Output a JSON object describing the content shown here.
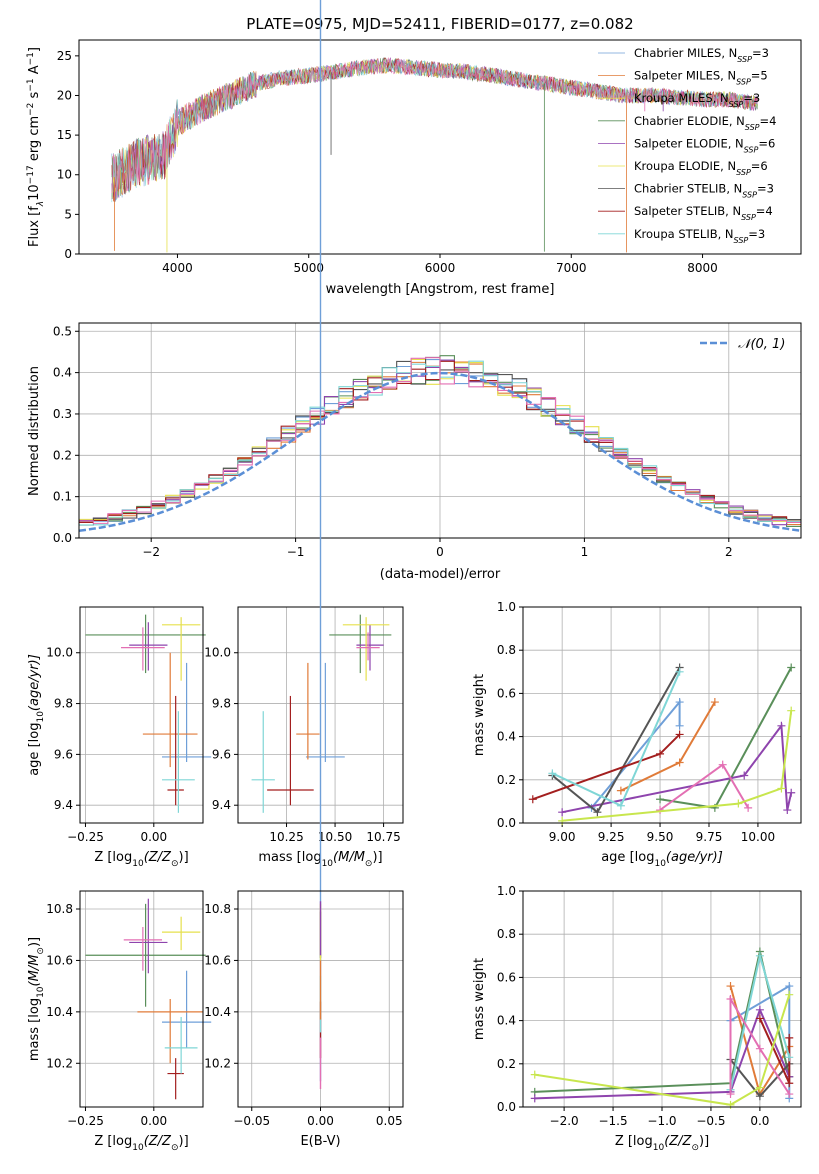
{
  "colors": {
    "cm": "#1f77b4",
    "sm": "#ff7f0e",
    "km": "#2ca02c",
    "cM": "#6b8dd6",
    "sM": "#d97a2b",
    "kM": "#e8c24a",
    "s1": "#6f9fd8",
    "s2": "#e07b39",
    "s3": "#5a8f5a",
    "s4": "#8e44ad",
    "s5": "#e6e04d",
    "s6": "#555555",
    "s7": "#a31f1f",
    "s8": "#7fd6d6",
    "s9": "#e36fb3",
    "s10": "#c8e64d",
    "normal": "#5b8fd6",
    "grid": "#b0b0b0"
  },
  "chart_data": [
    {
      "type": "line",
      "title": "PLATE=0975, MJD=52411, FIBERID=0177, z=0.082",
      "xlabel": "wavelength [Angstrom, rest frame]",
      "ylabel": "Flux [f",
      "ylabel_sub": "λ",
      "ylabel_rest": "10",
      "ylabel_exp": "−17",
      "ylabel_units": " erg cm",
      "ylabel_exp2": "−2",
      "ylabel_s": " s",
      "ylabel_exp3": "−1",
      "ylabel_A": " A",
      "ylabel_exp4": "−1",
      "ylabel_end": "]",
      "xlim": [
        3250,
        8750
      ],
      "ylim": [
        0,
        27
      ],
      "xticks": [
        "4000",
        "5000",
        "6000",
        "7000",
        "8000"
      ],
      "xtick_values": [
        4000,
        5000,
        6000,
        7000,
        8000
      ],
      "yticks": [
        "0",
        "5",
        "10",
        "15",
        "20",
        "25"
      ],
      "ytick_values": [
        0,
        5,
        10,
        15,
        20,
        25
      ],
      "continuum_x": [
        3500,
        3700,
        3900,
        4000,
        4200,
        4400,
        4600,
        4800,
        5000,
        5200,
        5400,
        5600,
        5800,
        6000,
        6200,
        6400,
        6600,
        6800,
        7000,
        7200,
        7400,
        7600,
        7800,
        8000,
        8200,
        8400
      ],
      "continuum_y": [
        9.5,
        11.5,
        12.5,
        16.5,
        18.5,
        20,
        21.5,
        22.2,
        22.5,
        23,
        23.5,
        23.8,
        23.5,
        23.2,
        23,
        22.5,
        22,
        21.5,
        21,
        20.5,
        20,
        20,
        19.8,
        19.5,
        19.5,
        19
      ],
      "legend": [
        {
          "name": "Chabrier MILES, N",
          "sub": "SSP",
          "val": "=3"
        },
        {
          "name": "Salpeter MILES, N",
          "sub": "SSP",
          "val": "=5"
        },
        {
          "name": "Kroupa MILES, N",
          "sub": "SSP",
          "val": "=3"
        },
        {
          "name": "Chabrier ELODIE, N",
          "sub": "SSP",
          "val": "=4"
        },
        {
          "name": "Salpeter ELODIE, N",
          "sub": "SSP",
          "val": "=6"
        },
        {
          "name": "Kroupa ELODIE, N",
          "sub": "SSP",
          "val": "=6"
        },
        {
          "name": "Chabrier STELIB, N",
          "sub": "SSP",
          "val": "=3"
        },
        {
          "name": "Salpeter STELIB, N",
          "sub": "SSP",
          "val": "=4"
        },
        {
          "name": "Kroupa STELIB, N",
          "sub": "SSP",
          "val": "=3"
        }
      ],
      "legend_placement": "upper-right"
    },
    {
      "type": "step",
      "xlabel": "(data-model)/error",
      "ylabel": "Normed distribution",
      "xlim": [
        -2.5,
        2.5
      ],
      "ylim": [
        0,
        0.52
      ],
      "xticks": [
        "−2",
        "−1",
        "0",
        "1",
        "2"
      ],
      "xtick_values": [
        -2,
        -1,
        0,
        1,
        2
      ],
      "yticks": [
        "0.0",
        "0.1",
        "0.2",
        "0.3",
        "0.4",
        "0.5"
      ],
      "ytick_values": [
        0,
        0.1,
        0.2,
        0.3,
        0.4,
        0.5
      ],
      "grid": true,
      "legend": "𝒩(0, 1)",
      "normal_mean": 0,
      "normal_sigma": 1,
      "bin_width": 0.1
    },
    {
      "type": "errorbar",
      "xlabel": "Z [log",
      "xlabel_sub": "10",
      "xlabel_rest": "(Z/Z",
      "xlabel_sub2": "⊙",
      "xlabel_end": ")]",
      "ylabel": "age  [log",
      "ylabel_sub": "10",
      "ylabel_rest": "(age/yr)]",
      "xlim": [
        -0.27,
        0.18
      ],
      "ylim": [
        9.33,
        10.18
      ],
      "xticks": [
        "−0.25",
        "0.00"
      ],
      "xtick_values": [
        -0.25,
        0.0
      ],
      "yticks": [
        "9.4",
        "9.6",
        "9.8",
        "10.0"
      ],
      "ytick_values": [
        9.4,
        9.6,
        9.8,
        10.0
      ]
    },
    {
      "type": "errorbar",
      "xlabel": "mass [log",
      "xlabel_sub": "10",
      "xlabel_rest": "(M/M",
      "xlabel_sub2": "⊙",
      "xlabel_end": ")]",
      "xlim": [
        10.0,
        10.85
      ],
      "ylim": [
        9.33,
        10.18
      ],
      "xticks": [
        "10.25",
        "10.50",
        "10.75"
      ],
      "xtick_values": [
        10.25,
        10.5,
        10.75
      ],
      "yticks": [
        "9.4",
        "9.6",
        "9.8",
        "10.0"
      ],
      "ytick_values": [
        9.4,
        9.6,
        9.8,
        10.0
      ]
    },
    {
      "type": "line",
      "xlabel": "age  [log",
      "xlabel_sub": "10",
      "xlabel_rest": "(age/yr)]",
      "ylabel": "mass weight",
      "xlim": [
        8.8,
        10.22
      ],
      "ylim": [
        0,
        1.0
      ],
      "xticks": [
        "9.00",
        "9.25",
        "9.50",
        "9.75",
        "10.00"
      ],
      "xtick_values": [
        9.0,
        9.25,
        9.5,
        9.75,
        10.0
      ],
      "yticks": [
        "0.0",
        "0.2",
        "0.4",
        "0.6",
        "0.8",
        "1.0"
      ],
      "ytick_values": [
        0,
        0.2,
        0.4,
        0.6,
        0.8,
        1.0
      ],
      "grid": true,
      "series": [
        {
          "color": "s1",
          "x": [
            9.15,
            9.6,
            9.6
          ],
          "y": [
            0.07,
            0.56,
            0.45
          ]
        },
        {
          "color": "s2",
          "x": [
            9.3,
            9.6,
            9.78
          ],
          "y": [
            0.15,
            0.28,
            0.56
          ]
        },
        {
          "color": "s3",
          "x": [
            9.5,
            9.78,
            10.17
          ],
          "y": [
            0.11,
            0.07,
            0.72
          ]
        },
        {
          "color": "s4",
          "x": [
            9.0,
            9.93,
            10.12,
            10.15,
            10.17
          ],
          "y": [
            0.05,
            0.22,
            0.45,
            0.06,
            0.14
          ]
        },
        {
          "color": "s6",
          "x": [
            8.95,
            9.18,
            9.6
          ],
          "y": [
            0.22,
            0.05,
            0.72
          ]
        },
        {
          "color": "s7",
          "x": [
            8.85,
            9.5,
            9.6
          ],
          "y": [
            0.11,
            0.32,
            0.41
          ]
        },
        {
          "color": "s8",
          "x": [
            8.95,
            9.3,
            9.6
          ],
          "y": [
            0.23,
            0.08,
            0.7
          ]
        },
        {
          "color": "s9",
          "x": [
            9.5,
            9.82,
            9.95
          ],
          "y": [
            0.06,
            0.27,
            0.07
          ]
        },
        {
          "color": "s10",
          "x": [
            9.0,
            9.9,
            10.12,
            10.17
          ],
          "y": [
            0.01,
            0.09,
            0.16,
            0.52
          ]
        }
      ]
    },
    {
      "type": "errorbar",
      "xlabel": "Z [log",
      "xlabel_sub": "10",
      "xlabel_rest": "(Z/Z",
      "xlabel_sub2": "⊙",
      "xlabel_end": ")]",
      "ylabel": "mass [log",
      "ylabel_sub": "10",
      "ylabel_rest": "(M/M",
      "ylabel_sub2": "⊙",
      "ylabel_end": ")]",
      "xlim": [
        -0.27,
        0.18
      ],
      "ylim": [
        10.03,
        10.87
      ],
      "xticks": [
        "−0.25",
        "0.00"
      ],
      "xtick_values": [
        -0.25,
        0.0
      ],
      "yticks": [
        "10.2",
        "10.4",
        "10.6",
        "10.8"
      ],
      "ytick_values": [
        10.2,
        10.4,
        10.6,
        10.8
      ]
    },
    {
      "type": "errorbar",
      "xlabel": "E(B-V)",
      "xlim": [
        -0.06,
        0.06
      ],
      "ylim": [
        10.03,
        10.87
      ],
      "xticks": [
        "−0.05",
        "0.00",
        "0.05"
      ],
      "xtick_values": [
        -0.05,
        0.0,
        0.05
      ],
      "yticks": [
        "10.2",
        "10.4",
        "10.6",
        "10.8"
      ],
      "ytick_values": [
        10.2,
        10.4,
        10.6,
        10.8
      ]
    },
    {
      "type": "line",
      "xlabel": "Z [log",
      "xlabel_sub": "10",
      "xlabel_rest": "(Z/Z",
      "xlabel_sub2": "⊙",
      "xlabel_end": ")]",
      "ylabel": "mass weight",
      "xlim": [
        -2.42,
        0.42
      ],
      "ylim": [
        0,
        1.0
      ],
      "xticks": [
        "−2.0",
        "−1.5",
        "−1.0",
        "−0.5",
        "0.0"
      ],
      "xtick_values": [
        -2.0,
        -1.5,
        -1.0,
        -0.5,
        0.0
      ],
      "yticks": [
        "0.0",
        "0.2",
        "0.4",
        "0.6",
        "0.8",
        "1.0"
      ],
      "ytick_values": [
        0,
        0.2,
        0.4,
        0.6,
        0.8,
        1.0
      ],
      "grid": true,
      "series": [
        {
          "color": "s1",
          "x": [
            -0.3,
            0.3,
            0.3
          ],
          "y": [
            0.4,
            0.56,
            0.04
          ]
        },
        {
          "color": "s2",
          "x": [
            -0.3,
            0.0,
            0.3
          ],
          "y": [
            0.56,
            0.06,
            0.28
          ]
        },
        {
          "color": "s3",
          "x": [
            -2.3,
            -0.3,
            0.0,
            0.3
          ],
          "y": [
            0.07,
            0.11,
            0.72,
            0.14
          ]
        },
        {
          "color": "s4",
          "x": [
            -2.3,
            -0.3,
            0.0,
            0.3
          ],
          "y": [
            0.04,
            0.07,
            0.45,
            0.14
          ]
        },
        {
          "color": "s6",
          "x": [
            -0.3,
            0.0,
            0.3
          ],
          "y": [
            0.22,
            0.05,
            0.2
          ]
        },
        {
          "color": "s7",
          "x": [
            0.0,
            0.3,
            0.3
          ],
          "y": [
            0.41,
            0.11,
            0.32
          ]
        },
        {
          "color": "s8",
          "x": [
            -0.3,
            0.0,
            0.3
          ],
          "y": [
            0.08,
            0.7,
            0.23
          ]
        },
        {
          "color": "s9",
          "x": [
            -0.3,
            -0.3,
            0.0,
            0.3
          ],
          "y": [
            0.06,
            0.5,
            0.27,
            0.06
          ]
        },
        {
          "color": "s10",
          "x": [
            -2.3,
            -0.3,
            0.0,
            0.3
          ],
          "y": [
            0.15,
            0.01,
            0.09,
            0.52
          ]
        }
      ]
    }
  ]
}
